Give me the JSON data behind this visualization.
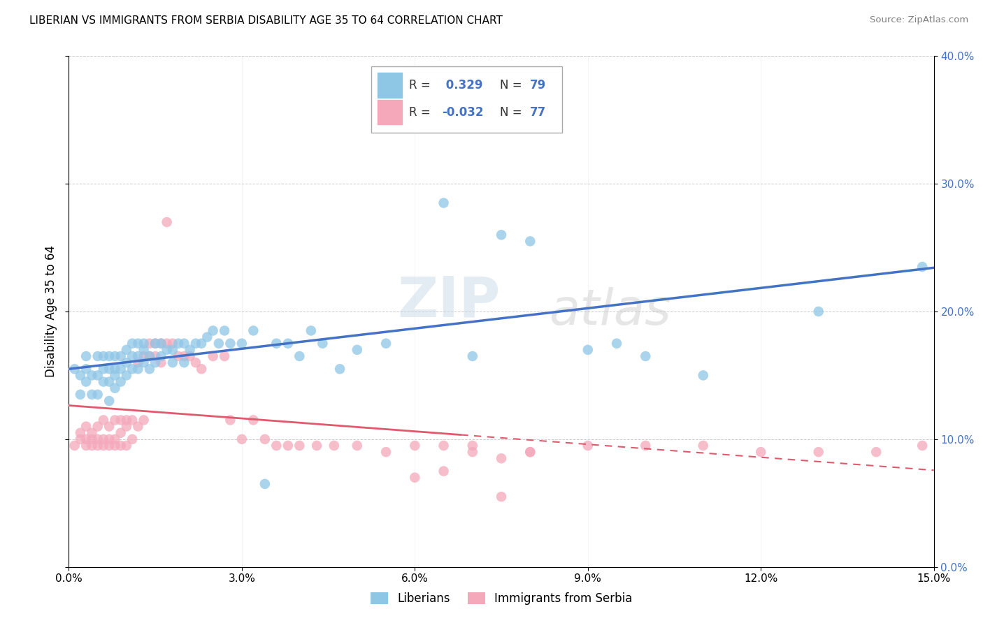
{
  "title": "LIBERIAN VS IMMIGRANTS FROM SERBIA DISABILITY AGE 35 TO 64 CORRELATION CHART",
  "source": "Source: ZipAtlas.com",
  "ylabel": "Disability Age 35 to 64",
  "xmin": 0.0,
  "xmax": 0.15,
  "ymin": 0.0,
  "ymax": 0.4,
  "xticks": [
    0.0,
    0.03,
    0.06,
    0.09,
    0.12,
    0.15
  ],
  "yticks": [
    0.0,
    0.1,
    0.2,
    0.3,
    0.4
  ],
  "legend_labels": [
    "Liberians",
    "Immigrants from Serbia"
  ],
  "blue_color": "#8ec6e6",
  "pink_color": "#f4a8ba",
  "line_blue": "#4472c4",
  "line_pink": "#e05a6e",
  "watermark_zip": "ZIP",
  "watermark_atlas": "atlas",
  "liberian_x": [
    0.001,
    0.002,
    0.002,
    0.003,
    0.003,
    0.003,
    0.004,
    0.004,
    0.005,
    0.005,
    0.005,
    0.006,
    0.006,
    0.006,
    0.007,
    0.007,
    0.007,
    0.007,
    0.008,
    0.008,
    0.008,
    0.008,
    0.009,
    0.009,
    0.009,
    0.01,
    0.01,
    0.01,
    0.011,
    0.011,
    0.011,
    0.012,
    0.012,
    0.012,
    0.013,
    0.013,
    0.013,
    0.014,
    0.014,
    0.015,
    0.015,
    0.016,
    0.016,
    0.017,
    0.018,
    0.018,
    0.019,
    0.02,
    0.02,
    0.021,
    0.022,
    0.023,
    0.024,
    0.025,
    0.026,
    0.027,
    0.028,
    0.03,
    0.032,
    0.034,
    0.036,
    0.038,
    0.04,
    0.042,
    0.044,
    0.047,
    0.05,
    0.055,
    0.06,
    0.065,
    0.07,
    0.075,
    0.08,
    0.09,
    0.095,
    0.1,
    0.11,
    0.13,
    0.148
  ],
  "liberian_y": [
    0.155,
    0.15,
    0.135,
    0.145,
    0.155,
    0.165,
    0.15,
    0.135,
    0.135,
    0.15,
    0.165,
    0.145,
    0.155,
    0.165,
    0.13,
    0.145,
    0.155,
    0.165,
    0.14,
    0.15,
    0.155,
    0.165,
    0.145,
    0.155,
    0.165,
    0.15,
    0.16,
    0.17,
    0.155,
    0.165,
    0.175,
    0.155,
    0.165,
    0.175,
    0.16,
    0.17,
    0.175,
    0.155,
    0.165,
    0.16,
    0.175,
    0.165,
    0.175,
    0.17,
    0.16,
    0.17,
    0.175,
    0.16,
    0.175,
    0.17,
    0.175,
    0.175,
    0.18,
    0.185,
    0.175,
    0.185,
    0.175,
    0.175,
    0.185,
    0.065,
    0.175,
    0.175,
    0.165,
    0.185,
    0.175,
    0.155,
    0.17,
    0.175,
    0.345,
    0.285,
    0.165,
    0.26,
    0.255,
    0.17,
    0.175,
    0.165,
    0.15,
    0.2,
    0.235
  ],
  "serbia_x": [
    0.001,
    0.002,
    0.002,
    0.003,
    0.003,
    0.003,
    0.004,
    0.004,
    0.004,
    0.005,
    0.005,
    0.005,
    0.006,
    0.006,
    0.006,
    0.007,
    0.007,
    0.007,
    0.008,
    0.008,
    0.008,
    0.009,
    0.009,
    0.009,
    0.01,
    0.01,
    0.01,
    0.011,
    0.011,
    0.012,
    0.012,
    0.013,
    0.013,
    0.014,
    0.014,
    0.015,
    0.015,
    0.016,
    0.016,
    0.017,
    0.017,
    0.018,
    0.019,
    0.02,
    0.021,
    0.022,
    0.023,
    0.025,
    0.027,
    0.028,
    0.03,
    0.032,
    0.034,
    0.036,
    0.038,
    0.04,
    0.043,
    0.046,
    0.05,
    0.055,
    0.06,
    0.065,
    0.07,
    0.075,
    0.08,
    0.09,
    0.1,
    0.11,
    0.12,
    0.13,
    0.14,
    0.148,
    0.06,
    0.065,
    0.07,
    0.075,
    0.08
  ],
  "serbia_y": [
    0.095,
    0.1,
    0.105,
    0.095,
    0.1,
    0.11,
    0.095,
    0.105,
    0.1,
    0.095,
    0.1,
    0.11,
    0.095,
    0.1,
    0.115,
    0.095,
    0.1,
    0.11,
    0.095,
    0.1,
    0.115,
    0.095,
    0.105,
    0.115,
    0.095,
    0.11,
    0.115,
    0.1,
    0.115,
    0.11,
    0.16,
    0.115,
    0.165,
    0.175,
    0.165,
    0.175,
    0.165,
    0.175,
    0.16,
    0.175,
    0.27,
    0.175,
    0.165,
    0.165,
    0.165,
    0.16,
    0.155,
    0.165,
    0.165,
    0.115,
    0.1,
    0.115,
    0.1,
    0.095,
    0.095,
    0.095,
    0.095,
    0.095,
    0.095,
    0.09,
    0.095,
    0.075,
    0.095,
    0.085,
    0.09,
    0.095,
    0.095,
    0.095,
    0.09,
    0.09,
    0.09,
    0.095,
    0.07,
    0.095,
    0.09,
    0.055,
    0.09
  ]
}
